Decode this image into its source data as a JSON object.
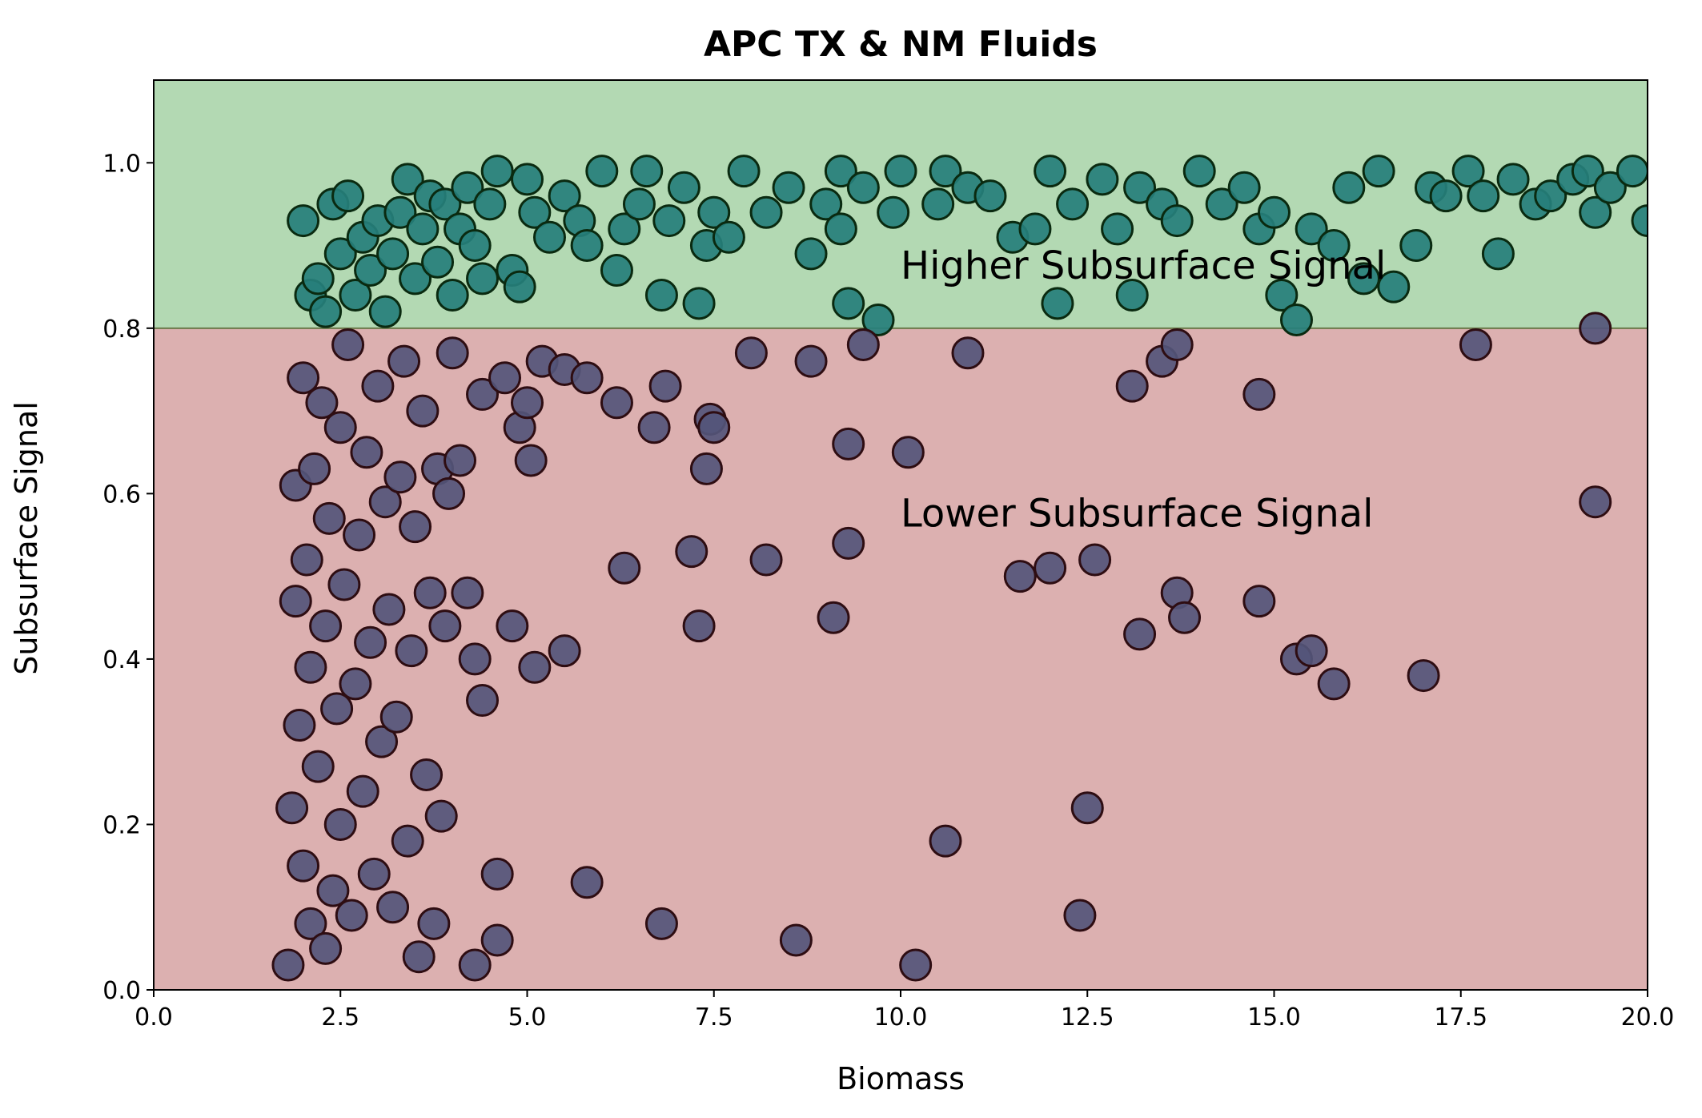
{
  "chart_data": {
    "type": "scatter",
    "title": "APC TX & NM Fluids",
    "xlabel": "Biomass",
    "ylabel": "Subsurface Signal",
    "xlim": [
      0,
      20
    ],
    "ylim": [
      0,
      1.1
    ],
    "x_ticks": [
      "0.0",
      "2.5",
      "5.0",
      "7.5",
      "10.0",
      "12.5",
      "15.0",
      "17.5",
      "20.0"
    ],
    "y_ticks": [
      "0.0",
      "0.2",
      "0.4",
      "0.6",
      "0.8",
      "1.0"
    ],
    "threshold": 0.8,
    "grid": false,
    "legend": "none",
    "regions": [
      {
        "label": "Higher Subsurface Signal",
        "y_range": [
          0.8,
          1.1
        ],
        "color": "#b3d9b3",
        "label_at": [
          10.0,
          0.86
        ]
      },
      {
        "label": "Lower Subsurface Signal",
        "y_range": [
          0,
          0.8
        ],
        "color": "#dcb0b0",
        "label_at": [
          10.0,
          0.56
        ]
      }
    ],
    "colors": {
      "high_marker": "#267f7b",
      "high_edge": "#0a2a10",
      "low_marker": "#54557a",
      "low_edge": "#2e0d12"
    },
    "series": [
      {
        "group": "high",
        "points": [
          [
            2.0,
            0.93
          ],
          [
            2.1,
            0.84
          ],
          [
            2.2,
            0.86
          ],
          [
            2.3,
            0.82
          ],
          [
            2.4,
            0.95
          ],
          [
            2.5,
            0.89
          ],
          [
            2.6,
            0.96
          ],
          [
            2.7,
            0.84
          ],
          [
            2.8,
            0.91
          ],
          [
            2.9,
            0.87
          ],
          [
            3.0,
            0.93
          ],
          [
            3.1,
            0.82
          ],
          [
            3.2,
            0.89
          ],
          [
            3.3,
            0.94
          ],
          [
            3.4,
            0.98
          ],
          [
            3.5,
            0.86
          ],
          [
            3.6,
            0.92
          ],
          [
            3.7,
            0.96
          ],
          [
            3.8,
            0.88
          ],
          [
            3.9,
            0.95
          ],
          [
            4.0,
            0.84
          ],
          [
            4.1,
            0.92
          ],
          [
            4.2,
            0.97
          ],
          [
            4.3,
            0.9
          ],
          [
            4.4,
            0.86
          ],
          [
            4.5,
            0.95
          ],
          [
            4.6,
            0.99
          ],
          [
            4.8,
            0.87
          ],
          [
            4.9,
            0.85
          ],
          [
            5.0,
            0.98
          ],
          [
            5.1,
            0.94
          ],
          [
            5.3,
            0.91
          ],
          [
            5.5,
            0.96
          ],
          [
            5.7,
            0.93
          ],
          [
            5.8,
            0.9
          ],
          [
            6.0,
            0.99
          ],
          [
            6.2,
            0.87
          ],
          [
            6.3,
            0.92
          ],
          [
            6.5,
            0.95
          ],
          [
            6.6,
            0.99
          ],
          [
            6.8,
            0.84
          ],
          [
            6.9,
            0.93
          ],
          [
            7.1,
            0.97
          ],
          [
            7.3,
            0.83
          ],
          [
            7.4,
            0.9
          ],
          [
            7.5,
            0.94
          ],
          [
            7.7,
            0.91
          ],
          [
            7.9,
            0.99
          ],
          [
            8.2,
            0.94
          ],
          [
            8.5,
            0.97
          ],
          [
            8.8,
            0.89
          ],
          [
            9.0,
            0.95
          ],
          [
            9.2,
            0.92
          ],
          [
            9.2,
            0.99
          ],
          [
            9.3,
            0.83
          ],
          [
            9.5,
            0.97
          ],
          [
            9.7,
            0.81
          ],
          [
            9.9,
            0.94
          ],
          [
            10.0,
            0.99
          ],
          [
            10.5,
            0.95
          ],
          [
            10.6,
            0.99
          ],
          [
            10.9,
            0.97
          ],
          [
            11.2,
            0.96
          ],
          [
            11.5,
            0.91
          ],
          [
            11.8,
            0.92
          ],
          [
            12.0,
            0.99
          ],
          [
            12.1,
            0.83
          ],
          [
            12.3,
            0.95
          ],
          [
            12.7,
            0.98
          ],
          [
            12.9,
            0.92
          ],
          [
            13.1,
            0.84
          ],
          [
            13.2,
            0.97
          ],
          [
            13.5,
            0.95
          ],
          [
            13.7,
            0.93
          ],
          [
            14.0,
            0.99
          ],
          [
            14.3,
            0.95
          ],
          [
            14.6,
            0.97
          ],
          [
            14.8,
            0.92
          ],
          [
            15.0,
            0.94
          ],
          [
            15.1,
            0.84
          ],
          [
            15.3,
            0.81
          ],
          [
            15.5,
            0.92
          ],
          [
            15.8,
            0.9
          ],
          [
            16.0,
            0.97
          ],
          [
            16.2,
            0.86
          ],
          [
            16.4,
            0.99
          ],
          [
            16.6,
            0.85
          ],
          [
            16.9,
            0.9
          ],
          [
            17.1,
            0.97
          ],
          [
            17.3,
            0.96
          ],
          [
            17.6,
            0.99
          ],
          [
            17.8,
            0.96
          ],
          [
            18.0,
            0.89
          ],
          [
            18.2,
            0.98
          ],
          [
            18.5,
            0.95
          ],
          [
            18.7,
            0.96
          ],
          [
            19.0,
            0.98
          ],
          [
            19.2,
            0.99
          ],
          [
            19.3,
            0.94
          ],
          [
            19.5,
            0.97
          ],
          [
            19.8,
            0.99
          ],
          [
            20.0,
            0.93
          ]
        ]
      },
      {
        "group": "low",
        "points": [
          [
            1.8,
            0.03
          ],
          [
            1.85,
            0.22
          ],
          [
            1.9,
            0.47
          ],
          [
            1.9,
            0.61
          ],
          [
            1.95,
            0.32
          ],
          [
            2.0,
            0.74
          ],
          [
            2.0,
            0.15
          ],
          [
            2.05,
            0.52
          ],
          [
            2.1,
            0.08
          ],
          [
            2.1,
            0.39
          ],
          [
            2.15,
            0.63
          ],
          [
            2.2,
            0.27
          ],
          [
            2.25,
            0.71
          ],
          [
            2.3,
            0.05
          ],
          [
            2.3,
            0.44
          ],
          [
            2.35,
            0.57
          ],
          [
            2.4,
            0.12
          ],
          [
            2.45,
            0.34
          ],
          [
            2.5,
            0.68
          ],
          [
            2.5,
            0.2
          ],
          [
            2.55,
            0.49
          ],
          [
            2.6,
            0.78
          ],
          [
            2.65,
            0.09
          ],
          [
            2.7,
            0.37
          ],
          [
            2.75,
            0.55
          ],
          [
            2.8,
            0.24
          ],
          [
            2.85,
            0.65
          ],
          [
            2.9,
            0.42
          ],
          [
            2.95,
            0.14
          ],
          [
            3.0,
            0.73
          ],
          [
            3.05,
            0.3
          ],
          [
            3.1,
            0.59
          ],
          [
            3.15,
            0.46
          ],
          [
            3.2,
            0.1
          ],
          [
            3.25,
            0.33
          ],
          [
            3.3,
            0.62
          ],
          [
            3.35,
            0.76
          ],
          [
            3.4,
            0.18
          ],
          [
            3.45,
            0.41
          ],
          [
            3.5,
            0.56
          ],
          [
            3.55,
            0.04
          ],
          [
            3.6,
            0.7
          ],
          [
            3.65,
            0.26
          ],
          [
            3.7,
            0.48
          ],
          [
            3.75,
            0.08
          ],
          [
            3.8,
            0.63
          ],
          [
            3.85,
            0.21
          ],
          [
            3.9,
            0.44
          ],
          [
            3.95,
            0.6
          ],
          [
            4.0,
            0.77
          ],
          [
            4.1,
            0.64
          ],
          [
            4.2,
            0.48
          ],
          [
            4.3,
            0.03
          ],
          [
            4.3,
            0.4
          ],
          [
            4.4,
            0.35
          ],
          [
            4.4,
            0.72
          ],
          [
            4.6,
            0.14
          ],
          [
            4.6,
            0.06
          ],
          [
            4.7,
            0.74
          ],
          [
            4.8,
            0.44
          ],
          [
            4.9,
            0.68
          ],
          [
            5.0,
            0.71
          ],
          [
            5.05,
            0.64
          ],
          [
            5.1,
            0.39
          ],
          [
            5.2,
            0.76
          ],
          [
            5.5,
            0.41
          ],
          [
            5.5,
            0.75
          ],
          [
            5.8,
            0.13
          ],
          [
            5.8,
            0.74
          ],
          [
            6.2,
            0.71
          ],
          [
            6.3,
            0.51
          ],
          [
            6.7,
            0.68
          ],
          [
            6.8,
            0.08
          ],
          [
            6.85,
            0.73
          ],
          [
            7.2,
            0.53
          ],
          [
            7.3,
            0.44
          ],
          [
            7.4,
            0.63
          ],
          [
            7.45,
            0.69
          ],
          [
            7.5,
            0.68
          ],
          [
            8.0,
            0.77
          ],
          [
            8.2,
            0.52
          ],
          [
            8.6,
            0.06
          ],
          [
            8.8,
            0.76
          ],
          [
            9.1,
            0.45
          ],
          [
            9.3,
            0.66
          ],
          [
            9.3,
            0.54
          ],
          [
            9.5,
            0.78
          ],
          [
            10.2,
            0.03
          ],
          [
            10.1,
            0.65
          ],
          [
            10.6,
            0.18
          ],
          [
            10.9,
            0.77
          ],
          [
            11.6,
            0.5
          ],
          [
            12.0,
            0.51
          ],
          [
            12.4,
            0.09
          ],
          [
            12.5,
            0.22
          ],
          [
            12.6,
            0.52
          ],
          [
            13.1,
            0.73
          ],
          [
            13.2,
            0.43
          ],
          [
            13.5,
            0.76
          ],
          [
            13.7,
            0.78
          ],
          [
            13.7,
            0.48
          ],
          [
            13.8,
            0.45
          ],
          [
            14.8,
            0.72
          ],
          [
            14.8,
            0.47
          ],
          [
            15.3,
            0.4
          ],
          [
            15.5,
            0.41
          ],
          [
            15.8,
            0.37
          ],
          [
            17.0,
            0.38
          ],
          [
            17.7,
            0.78
          ],
          [
            19.3,
            0.8
          ],
          [
            19.3,
            0.59
          ]
        ]
      }
    ]
  }
}
